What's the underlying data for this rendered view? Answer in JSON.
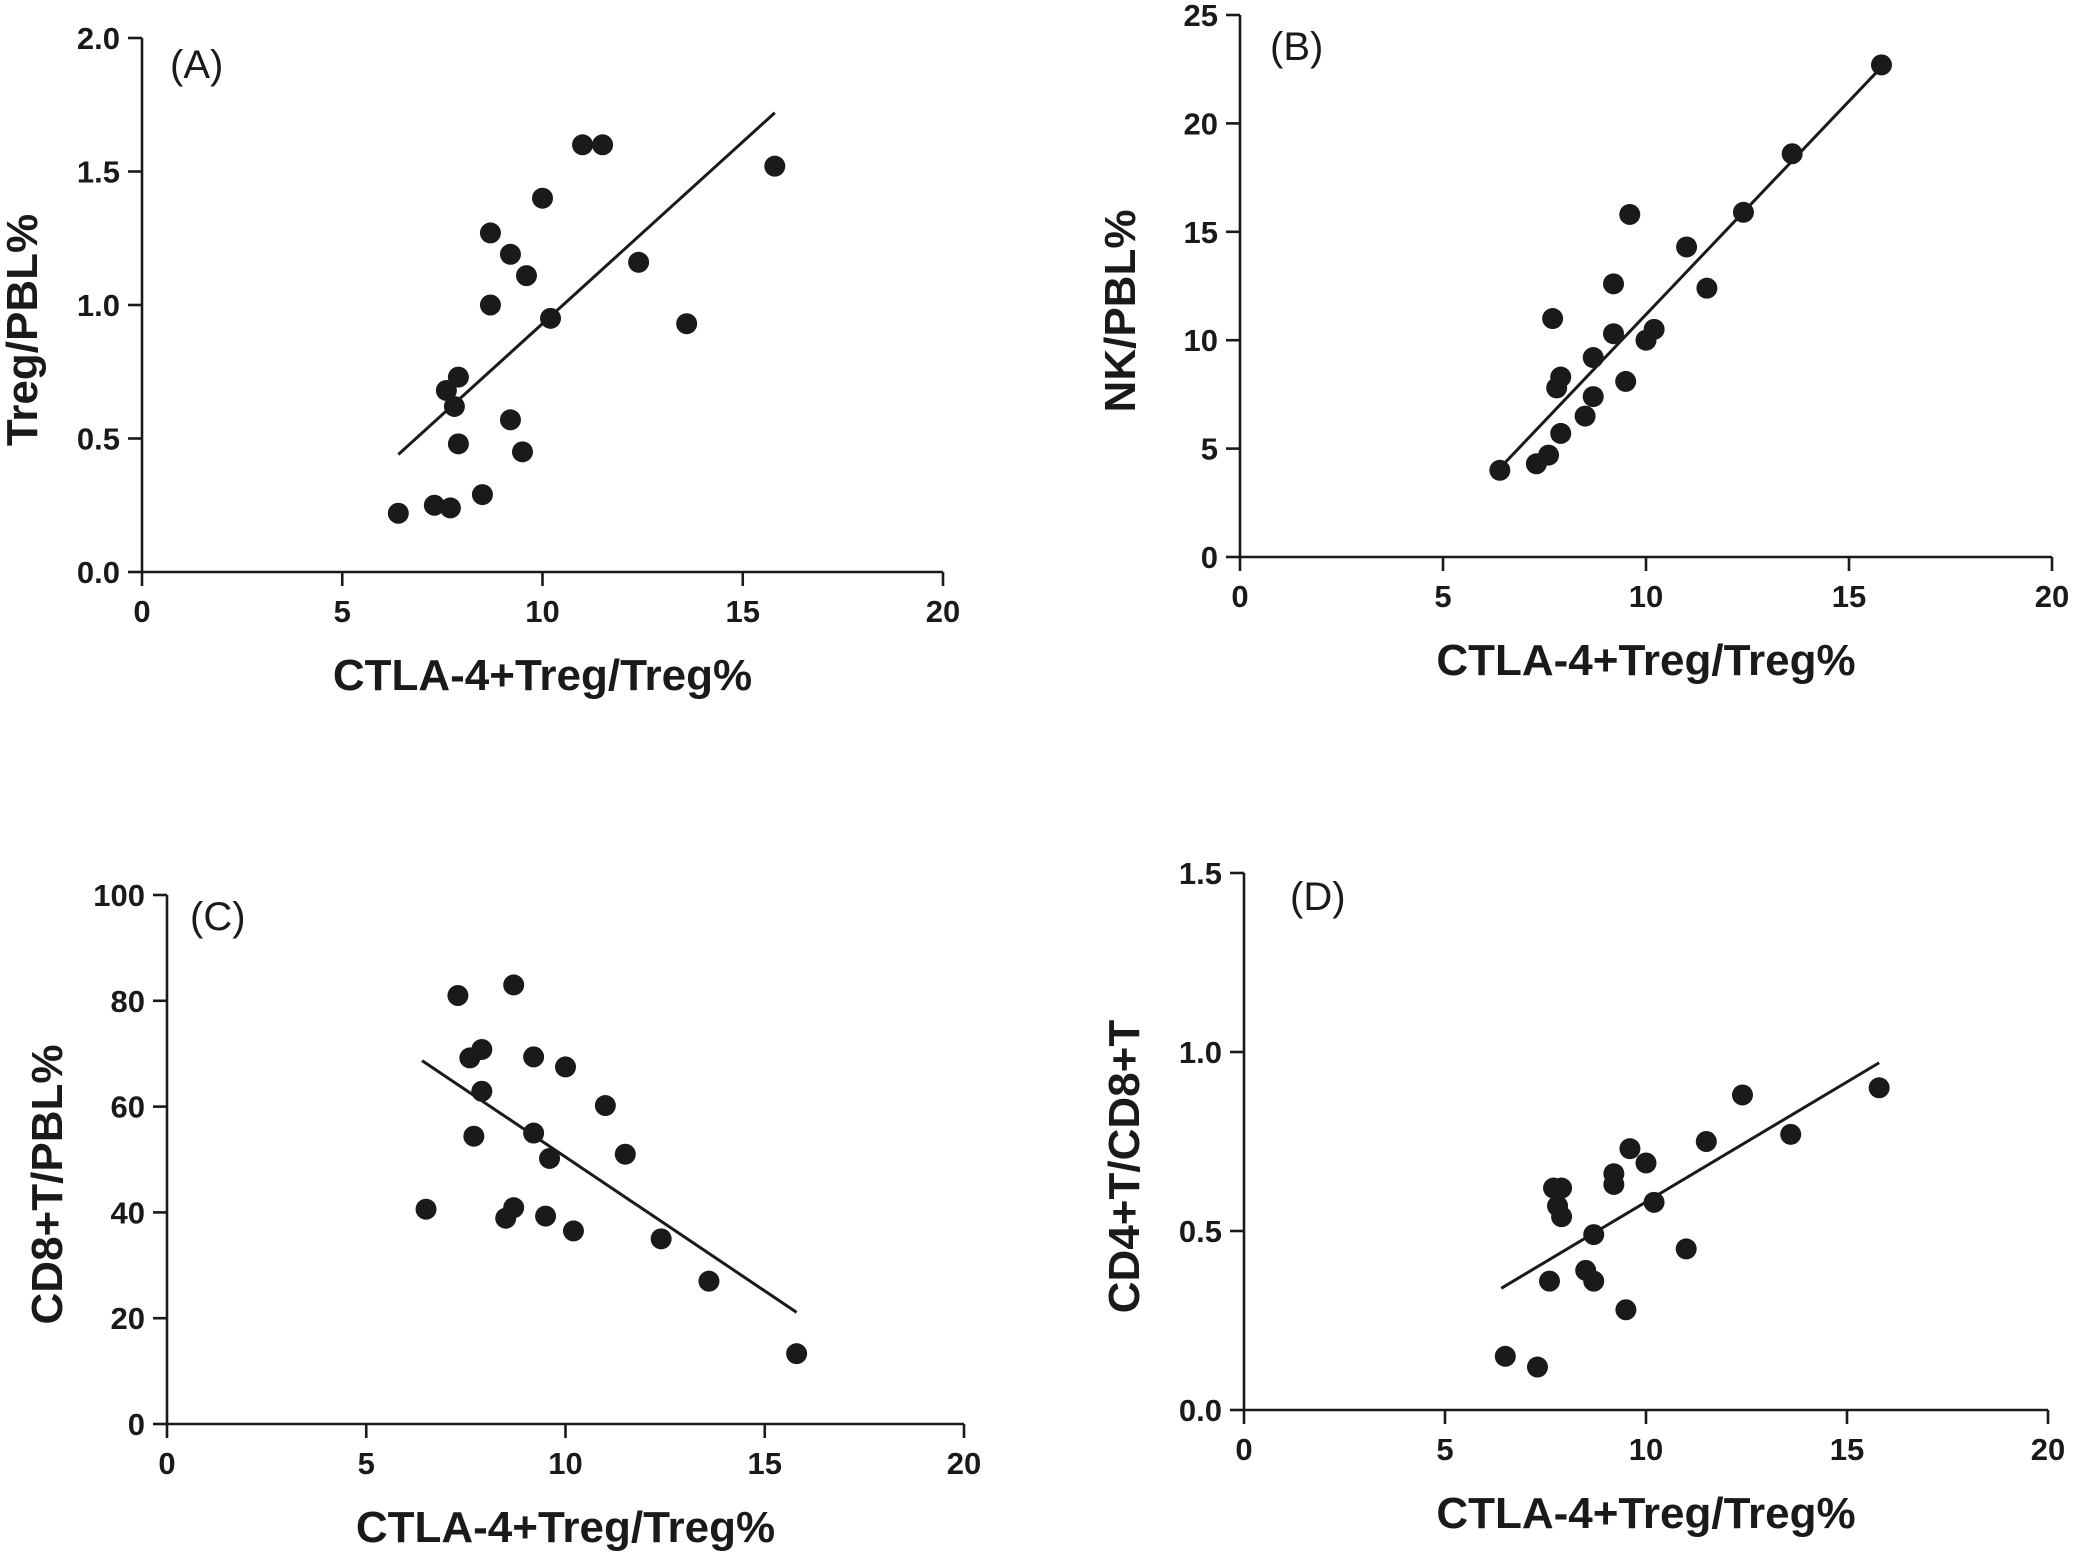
{
  "chart_data": [
    {
      "type": "scatter",
      "panel_label": "(A)",
      "xlabel": "CTLA-4+Treg/Treg%",
      "ylabel": "Treg/PBL%",
      "xlim": [
        0,
        20
      ],
      "ylim": [
        0,
        2.0
      ],
      "xticks": [
        "0",
        "5",
        "10",
        "15",
        "20"
      ],
      "yticks": [
        "0.0",
        "0.5",
        "1.0",
        "1.5",
        "2.0"
      ],
      "grid": false,
      "points": [
        [
          6.4,
          0.22
        ],
        [
          7.3,
          0.25
        ],
        [
          7.7,
          0.24
        ],
        [
          7.6,
          0.68
        ],
        [
          7.9,
          0.73
        ],
        [
          7.8,
          0.62
        ],
        [
          7.9,
          0.48
        ],
        [
          8.5,
          0.29
        ],
        [
          8.7,
          1.27
        ],
        [
          8.7,
          1.0
        ],
        [
          9.2,
          1.19
        ],
        [
          9.2,
          0.57
        ],
        [
          9.5,
          0.45
        ],
        [
          9.6,
          1.11
        ],
        [
          10.0,
          1.4
        ],
        [
          10.2,
          0.95
        ],
        [
          11.0,
          1.6
        ],
        [
          11.5,
          1.6
        ],
        [
          12.4,
          1.16
        ],
        [
          13.6,
          0.93
        ],
        [
          15.8,
          1.52
        ]
      ],
      "fit_line": [
        [
          6.4,
          0.44
        ],
        [
          15.8,
          1.72
        ]
      ]
    },
    {
      "type": "scatter",
      "panel_label": "(B)",
      "xlabel": "CTLA-4+Treg/Treg%",
      "ylabel": "NK/PBL%",
      "xlim": [
        0,
        20
      ],
      "ylim": [
        0,
        25
      ],
      "xticks": [
        "0",
        "5",
        "10",
        "15",
        "20"
      ],
      "yticks": [
        "0",
        "5",
        "10",
        "15",
        "20",
        "25"
      ],
      "grid": false,
      "points": [
        [
          6.4,
          4.0
        ],
        [
          7.3,
          4.3
        ],
        [
          7.6,
          4.7
        ],
        [
          7.7,
          11.0
        ],
        [
          7.8,
          7.8
        ],
        [
          7.9,
          8.3
        ],
        [
          7.9,
          5.7
        ],
        [
          8.5,
          6.5
        ],
        [
          8.7,
          9.2
        ],
        [
          8.7,
          7.4
        ],
        [
          9.2,
          10.3
        ],
        [
          9.2,
          12.6
        ],
        [
          9.5,
          8.1
        ],
        [
          9.6,
          15.8
        ],
        [
          10.0,
          10.0
        ],
        [
          10.2,
          10.5
        ],
        [
          11.0,
          14.3
        ],
        [
          11.5,
          12.4
        ],
        [
          12.4,
          15.9
        ],
        [
          13.6,
          18.6
        ],
        [
          15.8,
          22.7
        ]
      ],
      "fit_line": [
        [
          6.4,
          4.1
        ],
        [
          15.8,
          22.6
        ]
      ]
    },
    {
      "type": "scatter",
      "panel_label": "(C)",
      "xlabel": "CTLA-4+Treg/Treg%",
      "ylabel": "CD8+T/PBL%",
      "xlim": [
        0,
        20
      ],
      "ylim": [
        0,
        100
      ],
      "xticks": [
        "0",
        "5",
        "10",
        "15",
        "20"
      ],
      "yticks": [
        "0",
        "20",
        "40",
        "60",
        "80",
        "100"
      ],
      "grid": false,
      "points": [
        [
          6.5,
          40.6
        ],
        [
          7.3,
          81.0
        ],
        [
          7.6,
          69.2
        ],
        [
          7.7,
          54.4
        ],
        [
          7.9,
          62.9
        ],
        [
          7.9,
          70.8
        ],
        [
          8.5,
          38.9
        ],
        [
          8.7,
          40.9
        ],
        [
          8.7,
          83.0
        ],
        [
          9.2,
          69.4
        ],
        [
          9.2,
          55.0
        ],
        [
          9.5,
          39.3
        ],
        [
          9.6,
          50.2
        ],
        [
          10.0,
          67.5
        ],
        [
          10.2,
          36.5
        ],
        [
          11.0,
          60.2
        ],
        [
          11.5,
          51.0
        ],
        [
          12.4,
          35.0
        ],
        [
          13.6,
          27.0
        ],
        [
          15.8,
          13.3
        ]
      ],
      "fit_line": [
        [
          6.4,
          68.7
        ],
        [
          15.8,
          21.1
        ]
      ]
    },
    {
      "type": "scatter",
      "panel_label": "(D)",
      "xlabel": "CTLA-4+Treg/Treg%",
      "ylabel": "CD4+T/CD8+T",
      "xlim": [
        0,
        20
      ],
      "ylim": [
        0,
        1.5
      ],
      "xticks": [
        "0",
        "5",
        "10",
        "15",
        "20"
      ],
      "yticks": [
        "0.0",
        "0.5",
        "1.0",
        "1.5"
      ],
      "grid": false,
      "points": [
        [
          6.5,
          0.15
        ],
        [
          7.3,
          0.12
        ],
        [
          7.6,
          0.36
        ],
        [
          7.7,
          0.62
        ],
        [
          7.8,
          0.57
        ],
        [
          7.9,
          0.62
        ],
        [
          7.9,
          0.54
        ],
        [
          8.5,
          0.39
        ],
        [
          8.7,
          0.49
        ],
        [
          8.7,
          0.36
        ],
        [
          9.2,
          0.66
        ],
        [
          9.2,
          0.63
        ],
        [
          9.5,
          0.28
        ],
        [
          9.6,
          0.73
        ],
        [
          10.0,
          0.69
        ],
        [
          10.2,
          0.58
        ],
        [
          11.0,
          0.45
        ],
        [
          11.5,
          0.75
        ],
        [
          12.4,
          0.88
        ],
        [
          13.6,
          0.77
        ],
        [
          15.8,
          0.9
        ]
      ],
      "fit_line": [
        [
          6.4,
          0.34
        ],
        [
          15.8,
          0.97
        ]
      ]
    }
  ]
}
